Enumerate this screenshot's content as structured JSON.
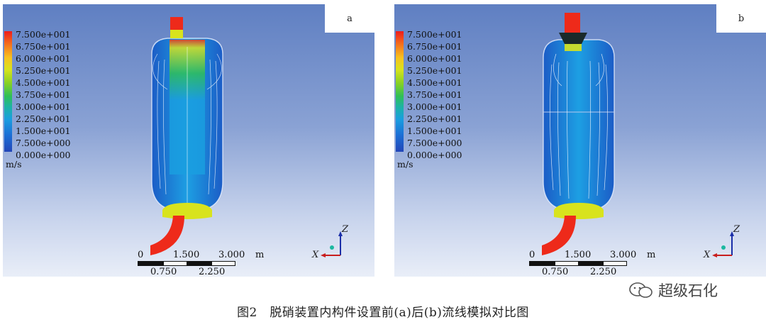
{
  "panels": [
    {
      "label": "a"
    },
    {
      "label": "b"
    }
  ],
  "legend": {
    "ticks": [
      "7.500e+001",
      "6.750e+001",
      "6.000e+001",
      "5.250e+001",
      "4.500e+001",
      "3.750e+001",
      "3.000e+001",
      "2.250e+001",
      "1.500e+001",
      "7.500e+000",
      "0.000e+000"
    ],
    "unit": "m/s",
    "colormap": [
      "#ee1b1b",
      "#f7c21f",
      "#88d124",
      "#1cb3a6",
      "#1a9ee0",
      "#2346b8"
    ]
  },
  "scale_bar": {
    "top_labels": [
      "0",
      "1.500",
      "3.000"
    ],
    "unit": "m",
    "bottom_labels": [
      "0.750",
      "2.250"
    ]
  },
  "axes": {
    "z": "Z",
    "x": "X"
  },
  "caption": "图2　脱硝装置内构件设置前(a)后(b)流线模拟对比图",
  "watermark": {
    "text": "超级石化",
    "icon": "wechat-icon"
  }
}
